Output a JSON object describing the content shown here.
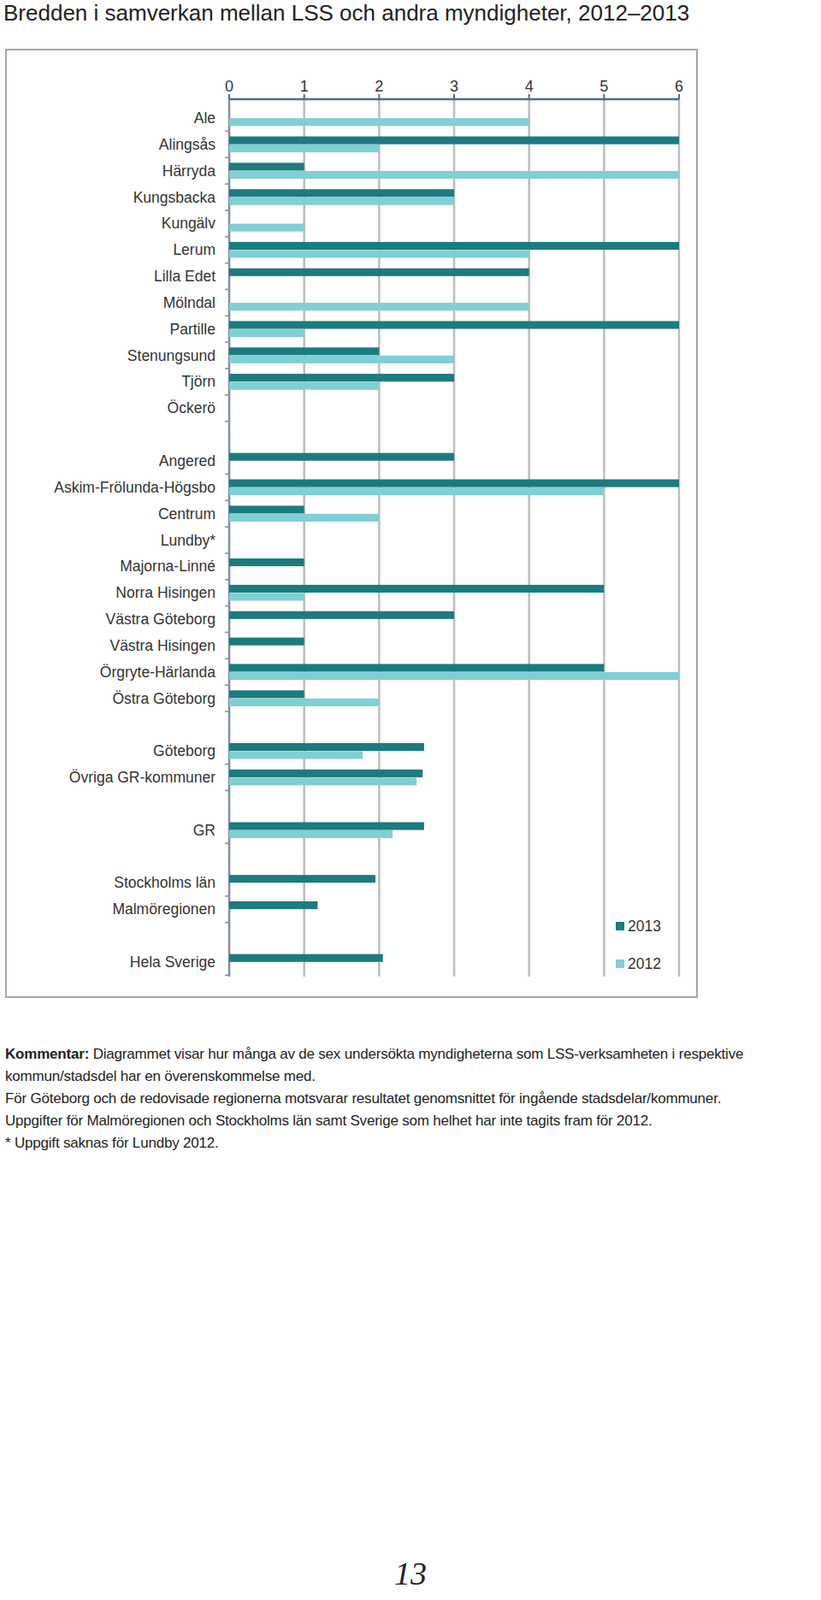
{
  "chart_data": {
    "type": "bar",
    "orientation": "horizontal",
    "title": "Bredden i samverkan mellan LSS och andra myndigheter, 2012–2013",
    "categories": [
      "Ale",
      "Alingsås",
      "Härryda",
      "Kungsbacka",
      "Kungälv",
      "Lerum",
      "Lilla Edet",
      "Mölndal",
      "Partille",
      "Stenungsund",
      "Tjörn",
      "Öckerö",
      null,
      "Angered",
      "Askim-Frölunda-Högsbo",
      "Centrum",
      "Lundby*",
      "Majorna-Linné",
      "Norra Hisingen",
      "Västra Göteborg",
      "Västra Hisingen",
      "Örgryte-Härlanda",
      "Östra Göteborg",
      null,
      "Göteborg",
      "Övriga GR-kommuner",
      null,
      "GR",
      null,
      "Stockholms län",
      "Malmöregionen",
      null,
      "Hela Sverige"
    ],
    "series": [
      {
        "name": "2013",
        "color": "#1b7b7e",
        "values": [
          0,
          6,
          1,
          3,
          0,
          6,
          4,
          0,
          6,
          2,
          3,
          0,
          null,
          3,
          6,
          1,
          0,
          1,
          5,
          3,
          1,
          5,
          1,
          null,
          2.6,
          2.58,
          null,
          2.6,
          null,
          1.95,
          1.18,
          null,
          2.05
        ]
      },
      {
        "name": "2012",
        "color": "#80cfd4",
        "values": [
          4,
          2,
          6,
          3,
          1,
          4,
          0,
          4,
          1,
          3,
          2,
          0,
          null,
          0,
          5,
          2,
          null,
          0,
          1,
          0,
          0,
          6,
          2,
          null,
          1.78,
          2.5,
          null,
          2.18,
          null,
          null,
          null,
          null,
          null
        ]
      }
    ],
    "xlim": [
      0,
      6
    ],
    "xticks": [
      0,
      1,
      2,
      3,
      4,
      5,
      6
    ],
    "grid": true,
    "legend": "bottom-right",
    "comment_label": "Kommentar:",
    "annotations": [
      "Diagrammet visar hur många av de sex undersökta myndigheterna som LSS-verksamheten i respektive kommun/stadsdel har en överenskommelse med.",
      "För Göteborg och de redovisade regionerna motsvarar resultatet genomsnittet för ingående stadsdelar/kommuner.",
      "Uppgifter för Malmöregionen och Stockholms län samt Sverige som helhet har inte tagits fram för 2012.",
      "* Uppgift saknas för Lundby 2012."
    ],
    "page_number": "13"
  }
}
